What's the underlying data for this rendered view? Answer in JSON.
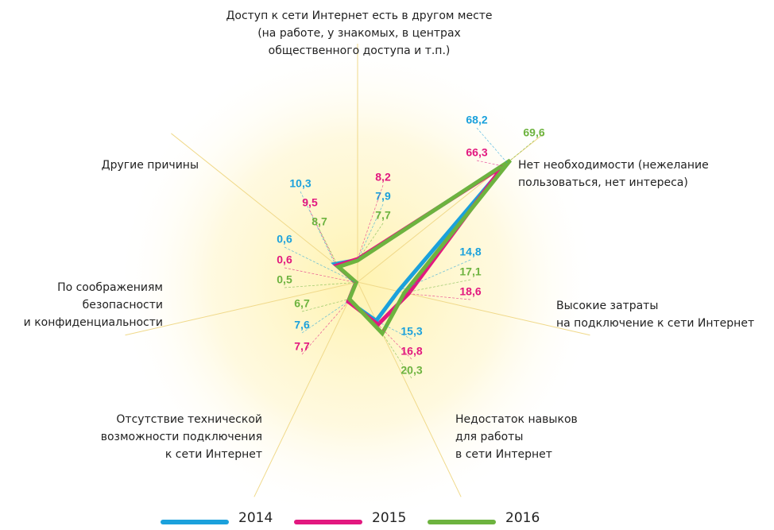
{
  "chart_data": {
    "type": "radar",
    "categories": [
      [
        "Доступ к сети Интернет есть в другом месте",
        "(на работе, у знакомых, в центрах",
        "общественного доступа и т.п.)"
      ],
      [
        "Нет необходимости (нежелание",
        "пользоваться, нет интереса)"
      ],
      [
        "Высокие затраты",
        "на подключение к сети Интернет"
      ],
      [
        "Недостаток навыков",
        "для работы",
        "в сети Интернет"
      ],
      [
        "Отсутствие технической",
        "возможности подключения",
        "к сети Интернет"
      ],
      [
        "По соображениям",
        "безопасности",
        "и конфиденциальности"
      ],
      [
        "Другие причины"
      ]
    ],
    "rlim": [
      0,
      85
    ],
    "series": [
      {
        "name": "2014",
        "color": "#1ba1dc",
        "values": [
          7.9,
          68.2,
          14.8,
          15.3,
          7.6,
          0.6,
          10.3
        ],
        "value_labels": [
          "7,9",
          "68,2",
          "14,8",
          "15,3",
          "7,6",
          "0,6",
          "10,3"
        ]
      },
      {
        "name": "2015",
        "color": "#e2187f",
        "values": [
          8.2,
          66.3,
          18.6,
          16.8,
          7.7,
          0.6,
          9.5
        ],
        "value_labels": [
          "8,2",
          "66,3",
          "18,6",
          "16,8",
          "7,7",
          "0,6",
          "9,5"
        ]
      },
      {
        "name": "2016",
        "color": "#6db33f",
        "values": [
          7.7,
          69.6,
          17.1,
          20.3,
          6.7,
          0.5,
          8.7
        ],
        "value_labels": [
          "7,7",
          "69,6",
          "17,1",
          "20,3",
          "6,7",
          "0,5",
          "8,7"
        ]
      }
    ]
  }
}
